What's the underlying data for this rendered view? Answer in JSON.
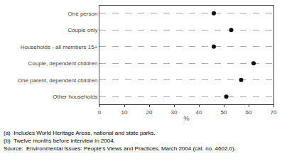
{
  "chart_data": {
    "type": "dot",
    "categories": [
      "Other households",
      "One parent, dependent children",
      "Couple, dependent children",
      "Households - all members 15+",
      "Couple only",
      "One person"
    ],
    "values": [
      51,
      57,
      62,
      46,
      53,
      46
    ],
    "color": "#111111",
    "xlabel": "%",
    "xlim": [
      0,
      70
    ],
    "xticks": [
      0,
      10,
      20,
      30,
      40,
      50,
      60,
      70
    ],
    "grid": true,
    "annotations": [
      "(a)  Includes World Heritage Areas, national and state parks.",
      "(b)  Twelve months before interview in 2004.",
      "Source:  Environmental Issues: People's Views and Practices, March 2004 (cat. no. 4602.0)."
    ]
  }
}
